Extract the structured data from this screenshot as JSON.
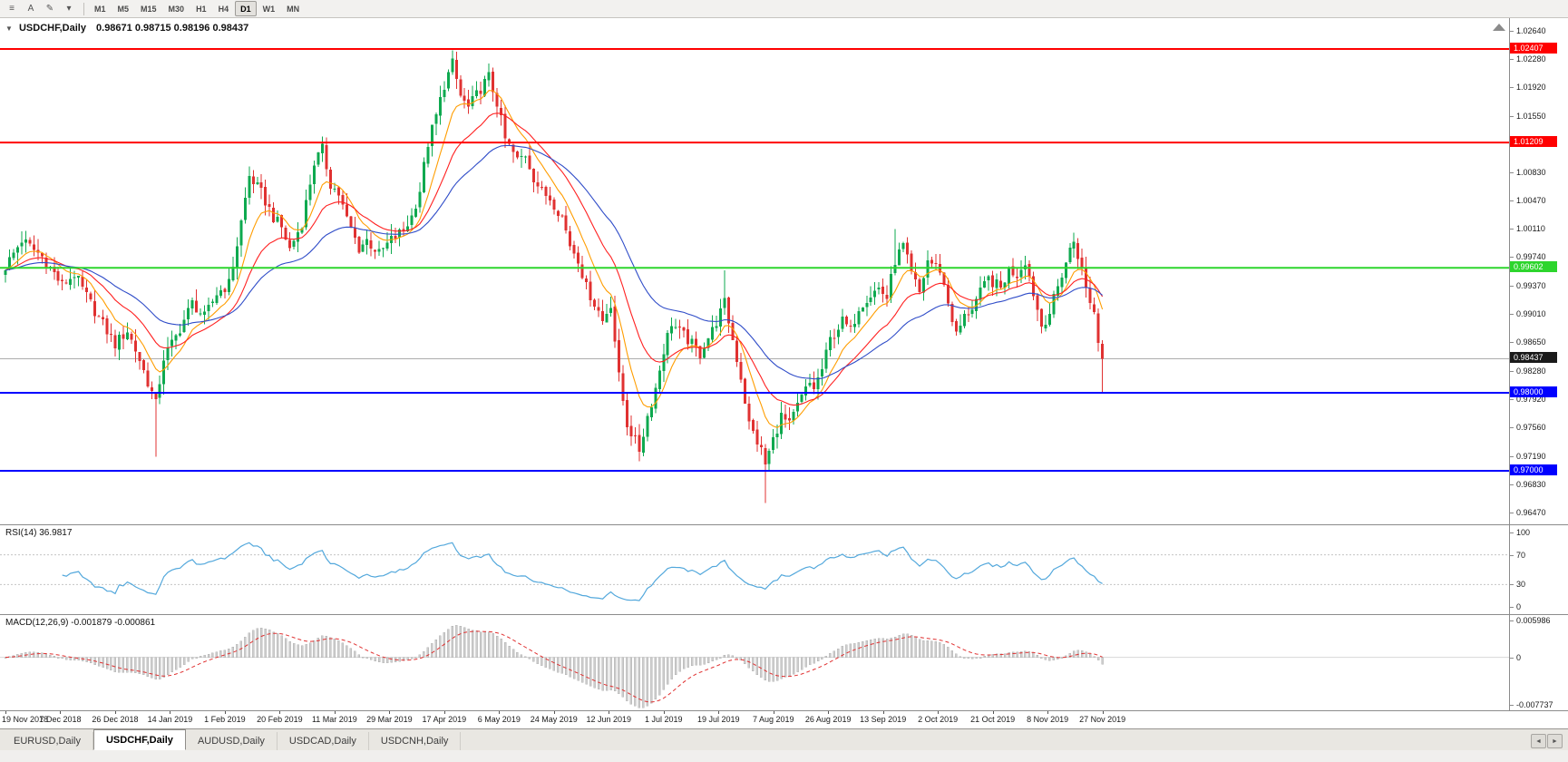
{
  "colors": {
    "up_candle": "#0ea94f",
    "down_candle": "#e03131",
    "rsi_line": "#53a8dc",
    "macd_histogram": "#cdcdcd",
    "macd_signal": "#e03131",
    "current_price_badge": "#1a1a1a",
    "current_price_line": "#adadad"
  },
  "toolbar": {
    "tools": [
      {
        "id": "menu",
        "glyph": "≡"
      },
      {
        "id": "text-tool",
        "glyph": "A"
      },
      {
        "id": "draw-tool",
        "glyph": "✎"
      },
      {
        "id": "tools-dropdown",
        "glyph": "▾"
      }
    ],
    "timeframes": [
      "M1",
      "M5",
      "M15",
      "M30",
      "H1",
      "H4",
      "D1",
      "W1",
      "MN"
    ],
    "active_timeframe": "D1"
  },
  "chart": {
    "collapse_arrow": "▼",
    "symbol_label": "USDCHF,Daily",
    "ohlc": "0.98671 0.98715 0.98196 0.98437",
    "current_price": "0.98437",
    "price_axis_ticks": [
      "1.02640",
      "1.02280",
      "1.01920",
      "1.01550",
      "1.01190",
      "1.00830",
      "1.00470",
      "1.00110",
      "0.99740",
      "0.99370",
      "0.99010",
      "0.98650",
      "0.98280",
      "0.97920",
      "0.97560",
      "0.97190",
      "0.96830",
      "0.96470"
    ],
    "levels": [
      {
        "label": "1.02407",
        "price": 1.02407,
        "color": "#ff0000"
      },
      {
        "label": "1.01209",
        "price": 1.01209,
        "color": "#ff0000"
      },
      {
        "label": "0.99602",
        "price": 0.99602,
        "color": "#2dd52d"
      },
      {
        "label": "0.98000",
        "price": 0.98,
        "color": "#0000ff"
      },
      {
        "label": "0.97000",
        "price": 0.97,
        "color": "#0000ff"
      }
    ],
    "date_labels": [
      "19 Nov 2018",
      "7 Dec 2018",
      "26 Dec 2018",
      "14 Jan 2019",
      "1 Feb 2019",
      "20 Feb 2019",
      "11 Mar 2019",
      "29 Mar 2019",
      "17 Apr 2019",
      "6 May 2019",
      "24 May 2019",
      "12 Jun 2019",
      "1 Jul 2019",
      "19 Jul 2019",
      "7 Aug 2019",
      "26 Aug 2019",
      "13 Sep 2019",
      "2 Oct 2019",
      "21 Oct 2019",
      "8 Nov 2019",
      "27 Nov 2019"
    ]
  },
  "chart_data": {
    "type": "candlestick",
    "symbol": "USDCHF",
    "timeframe": "Daily",
    "price_range": [
      0.9647,
      1.0264
    ],
    "n_candles": 271,
    "last_close": 0.98437,
    "close_waypoints": [
      [
        0,
        0.9962
      ],
      [
        4,
        0.9996
      ],
      [
        9,
        0.9975
      ],
      [
        14,
        0.9938
      ],
      [
        17,
        0.9952
      ],
      [
        22,
        0.9905
      ],
      [
        27,
        0.9862
      ],
      [
        30,
        0.988
      ],
      [
        33,
        0.9842
      ],
      [
        36,
        0.98
      ],
      [
        37,
        0.9785
      ],
      [
        39,
        0.9845
      ],
      [
        42,
        0.9872
      ],
      [
        46,
        0.9915
      ],
      [
        49,
        0.9897
      ],
      [
        52,
        0.9927
      ],
      [
        55,
        0.994
      ],
      [
        57,
        0.999
      ],
      [
        60,
        1.0078
      ],
      [
        63,
        1.0056
      ],
      [
        66,
        1.0025
      ],
      [
        68,
        1.0012
      ],
      [
        70,
        0.9984
      ],
      [
        73,
        1.0018
      ],
      [
        76,
        1.0095
      ],
      [
        78,
        1.0112
      ],
      [
        80,
        1.0068
      ],
      [
        82,
        1.0055
      ],
      [
        84,
        1.0022
      ],
      [
        87,
        0.9985
      ],
      [
        89,
        0.9996
      ],
      [
        92,
        0.9978
      ],
      [
        95,
        0.9996
      ],
      [
        98,
        1.0008
      ],
      [
        100,
        1.0026
      ],
      [
        102,
        1.006
      ],
      [
        104,
        1.012
      ],
      [
        106,
        1.0155
      ],
      [
        108,
        1.0195
      ],
      [
        110,
        1.0222
      ],
      [
        112,
        1.018
      ],
      [
        114,
        1.0165
      ],
      [
        117,
        1.019
      ],
      [
        119,
        1.0205
      ],
      [
        121,
        1.0172
      ],
      [
        123,
        1.0125
      ],
      [
        126,
        1.0098
      ],
      [
        128,
        1.0106
      ],
      [
        130,
        1.0076
      ],
      [
        132,
        1.0057
      ],
      [
        134,
        1.005
      ],
      [
        137,
        1.0026
      ],
      [
        139,
        0.999
      ],
      [
        141,
        0.9972
      ],
      [
        143,
        0.9935
      ],
      [
        146,
        0.9905
      ],
      [
        147,
        0.9892
      ],
      [
        149,
        0.9915
      ],
      [
        151,
        0.982
      ],
      [
        153,
        0.976
      ],
      [
        156,
        0.9727
      ],
      [
        158,
        0.977
      ],
      [
        160,
        0.9806
      ],
      [
        162,
        0.9855
      ],
      [
        164,
        0.989
      ],
      [
        166,
        0.9878
      ],
      [
        168,
        0.9868
      ],
      [
        171,
        0.985
      ],
      [
        172,
        0.9862
      ],
      [
        174,
        0.988
      ],
      [
        177,
        0.9915
      ],
      [
        179,
        0.9868
      ],
      [
        181,
        0.982
      ],
      [
        183,
        0.976
      ],
      [
        186,
        0.9726
      ],
      [
        187,
        0.9708
      ],
      [
        189,
        0.974
      ],
      [
        191,
        0.977
      ],
      [
        193,
        0.9758
      ],
      [
        196,
        0.9795
      ],
      [
        198,
        0.9812
      ],
      [
        199,
        0.9806
      ],
      [
        201,
        0.983
      ],
      [
        203,
        0.9868
      ],
      [
        206,
        0.9892
      ],
      [
        208,
        0.988
      ],
      [
        210,
        0.991
      ],
      [
        212,
        0.9922
      ],
      [
        215,
        0.9934
      ],
      [
        217,
        0.9922
      ],
      [
        219,
        0.997
      ],
      [
        221,
        0.9988
      ],
      [
        223,
        0.9952
      ],
      [
        225,
        0.9928
      ],
      [
        227,
        0.997
      ],
      [
        230,
        0.9958
      ],
      [
        232,
        0.9916
      ],
      [
        234,
        0.9874
      ],
      [
        236,
        0.9897
      ],
      [
        238,
        0.991
      ],
      [
        240,
        0.9928
      ],
      [
        242,
        0.9946
      ],
      [
        245,
        0.9934
      ],
      [
        247,
        0.9958
      ],
      [
        249,
        0.9952
      ],
      [
        251,
        0.997
      ],
      [
        253,
        0.9928
      ],
      [
        255,
        0.9886
      ],
      [
        257,
        0.9903
      ],
      [
        260,
        0.9952
      ],
      [
        262,
        0.9983
      ],
      [
        263,
        0.9995
      ],
      [
        264,
        0.9977
      ],
      [
        266,
        0.9934
      ],
      [
        268,
        0.9903
      ],
      [
        269,
        0.9867
      ],
      [
        270,
        0.98437
      ]
    ],
    "wick_extremes": [
      {
        "i": 37,
        "low": 0.9718
      },
      {
        "i": 110,
        "high": 1.0236
      },
      {
        "i": 119,
        "high": 1.0222
      },
      {
        "i": 156,
        "low": 0.9712
      },
      {
        "i": 177,
        "high": 0.9957
      },
      {
        "i": 187,
        "low": 0.9659
      },
      {
        "i": 219,
        "high": 1.001
      },
      {
        "i": 263,
        "high": 1.0005
      },
      {
        "i": 270,
        "low": 0.9801
      }
    ],
    "moving_averages": [
      {
        "type": "ema",
        "period": 9,
        "color": "#ff9d00"
      },
      {
        "type": "ema",
        "period": 20,
        "color": "#ff2020"
      },
      {
        "type": "ema",
        "period": 40,
        "color": "#2f4cc8"
      }
    ]
  },
  "rsi": {
    "name": "RSI(14)",
    "value": "36.9817",
    "period": 14,
    "axis_ticks": [
      "100",
      "70",
      "30",
      "0"
    ],
    "guide_levels": [
      70,
      30
    ],
    "range": [
      0,
      100
    ]
  },
  "macd": {
    "name": "MACD(12,26,9)",
    "main_value": "-0.001879",
    "signal_value": "-0.000861",
    "fast": 12,
    "slow": 26,
    "signal": 9,
    "axis_ticks": [
      "0.005986",
      "0",
      "-0.007737"
    ],
    "range": [
      -0.007737,
      0.005986
    ]
  },
  "tabs": {
    "items": [
      {
        "label": "EURUSD,Daily",
        "active": false
      },
      {
        "label": "USDCHF,Daily",
        "active": true
      },
      {
        "label": "AUDUSD,Daily",
        "active": false
      },
      {
        "label": "USDCAD,Daily",
        "active": false
      },
      {
        "label": "USDCNH,Daily",
        "active": false
      }
    ],
    "scroll_left_glyph": "◄",
    "scroll_right_glyph": "►"
  }
}
